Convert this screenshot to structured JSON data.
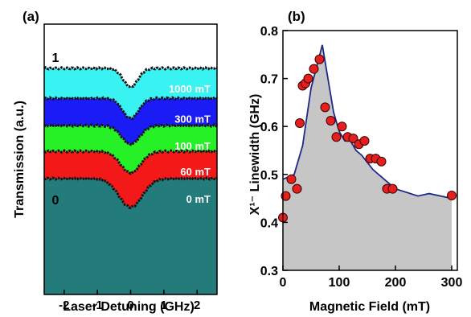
{
  "chart_data": [
    {
      "panel_label": "(a)",
      "type": "area",
      "xlabel": "Laser Detuning (GHz)",
      "ylabel": "Transmission (a.u.)",
      "xlim": [
        -2.6,
        2.6
      ],
      "xticks": [
        "-2",
        "-1",
        "0",
        "1",
        "2"
      ],
      "ytick_labels": [
        "1",
        "0"
      ],
      "series": [
        {
          "name": "1000 mT",
          "color": "#39f3f3",
          "baseline": 0.95,
          "dip_depth": 0.13,
          "dip_width": 0.22
        },
        {
          "name": "300 mT",
          "color": "#1b1bf5",
          "baseline": 0.74,
          "dip_depth": 0.14,
          "dip_width": 0.24
        },
        {
          "name": "100 mT",
          "color": "#26f126",
          "baseline": 0.55,
          "dip_depth": 0.13,
          "dip_width": 0.27
        },
        {
          "name": "60 mT",
          "color": "#f41919",
          "baseline": 0.37,
          "dip_depth": 0.15,
          "dip_width": 0.3
        },
        {
          "name": "0 mT",
          "color": "#237b7b",
          "baseline": 0.18,
          "dip_depth": 0.2,
          "dip_width": 0.35
        }
      ]
    },
    {
      "panel_label": "(b)",
      "type": "scatter",
      "xlabel": "Magnetic Field (mT)",
      "ylabel": "X¹⁻ Linewidth (GHz)",
      "xlim": [
        0,
        310
      ],
      "ylim": [
        0.3,
        0.8
      ],
      "xticks": [
        0,
        100,
        200,
        300
      ],
      "yticks": [
        0.3,
        0.4,
        0.5,
        0.6,
        0.7,
        0.8
      ],
      "points": [
        [
          0,
          0.41
        ],
        [
          5,
          0.455
        ],
        [
          15,
          0.49
        ],
        [
          25,
          0.47
        ],
        [
          30,
          0.607
        ],
        [
          35,
          0.685
        ],
        [
          40,
          0.69
        ],
        [
          45,
          0.7
        ],
        [
          55,
          0.72
        ],
        [
          65,
          0.74
        ],
        [
          75,
          0.64
        ],
        [
          85,
          0.612
        ],
        [
          95,
          0.578
        ],
        [
          105,
          0.6
        ],
        [
          115,
          0.578
        ],
        [
          125,
          0.575
        ],
        [
          135,
          0.563
        ],
        [
          145,
          0.57
        ],
        [
          155,
          0.533
        ],
        [
          165,
          0.533
        ],
        [
          175,
          0.527
        ],
        [
          185,
          0.47
        ],
        [
          195,
          0.47
        ],
        [
          300,
          0.456
        ]
      ],
      "fit": [
        [
          0,
          0.49
        ],
        [
          20,
          0.5
        ],
        [
          35,
          0.56
        ],
        [
          50,
          0.68
        ],
        [
          70,
          0.77
        ],
        [
          80,
          0.7
        ],
        [
          90,
          0.63
        ],
        [
          100,
          0.59
        ],
        [
          110,
          0.57
        ],
        [
          120,
          0.57
        ],
        [
          130,
          0.55
        ],
        [
          140,
          0.54
        ],
        [
          160,
          0.51
        ],
        [
          180,
          0.49
        ],
        [
          200,
          0.47
        ],
        [
          240,
          0.455
        ],
        [
          260,
          0.46
        ],
        [
          300,
          0.45
        ]
      ],
      "marker_color": "#e61e1e",
      "fit_color": "#1c2a8a",
      "fill_color": "#c6c6c6"
    }
  ]
}
